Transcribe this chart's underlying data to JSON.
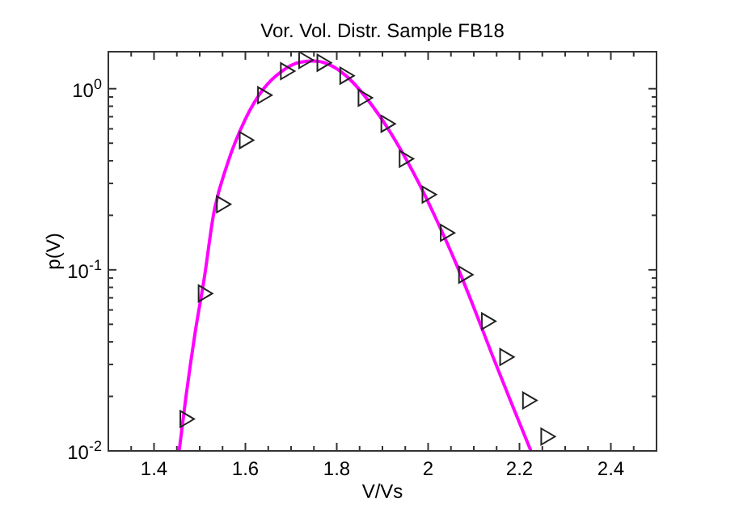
{
  "chart_data": {
    "type": "scatter",
    "title": "Vor. Vol. Distr. Sample FB18",
    "xlabel": "V/Vs",
    "ylabel": "p(V)",
    "log": "y",
    "grid": false,
    "xlim": [
      1.3,
      2.5
    ],
    "ylim": [
      0.01,
      1.6
    ],
    "xticks": [
      {
        "value": 1.35,
        "label": null
      },
      1.4,
      {
        "value": 1.45,
        "label": null
      },
      1.6,
      {
        "value": 1.5,
        "label": null
      },
      {
        "value": 1.55,
        "label": null
      },
      {
        "value": 1.65,
        "label": null
      },
      1.8,
      {
        "value": 1.7,
        "label": null
      },
      {
        "value": 1.75,
        "label": null
      },
      {
        "value": 1.85,
        "label": null
      },
      2,
      {
        "value": 1.9,
        "label": null
      },
      {
        "value": 1.95,
        "label": null
      },
      {
        "value": 2.05,
        "label": null
      },
      2.2,
      {
        "value": 2.1,
        "label": null
      },
      {
        "value": 2.15,
        "label": null
      },
      {
        "value": 2.25,
        "label": null
      },
      2.4,
      {
        "value": 2.3,
        "label": null
      },
      {
        "value": 2.35,
        "label": null
      },
      {
        "value": 2.45,
        "label": null
      }
    ],
    "yticks": [
      {
        "value": 0.01,
        "label": "10$^{-2}$"
      },
      {
        "value": 0.02,
        "label": null
      },
      {
        "value": 0.03,
        "label": null
      },
      {
        "value": 0.04,
        "label": null
      },
      {
        "value": 0.05,
        "label": null
      },
      {
        "value": 0.06,
        "label": null
      },
      {
        "value": 0.07,
        "label": null
      },
      {
        "value": 0.08,
        "label": null
      },
      {
        "value": 0.09,
        "label": null
      },
      {
        "value": 0.1,
        "label": "10$^{-1}$"
      },
      {
        "value": 0.2,
        "label": null
      },
      {
        "value": 0.3,
        "label": null
      },
      {
        "value": 0.4,
        "label": null
      },
      {
        "value": 0.5,
        "label": null
      },
      {
        "value": 0.6,
        "label": null
      },
      {
        "value": 0.7,
        "label": null
      },
      {
        "value": 0.8,
        "label": null
      },
      {
        "value": 0.9,
        "label": null
      },
      {
        "value": 1,
        "label": "10$^{0}$"
      }
    ],
    "series": [
      {
        "type": "line",
        "color": "#ff00ff",
        "marker": "none",
        "line_style": "solid",
        "x": [
          1.455,
          1.47,
          1.49,
          1.51,
          1.53,
          1.56,
          1.6,
          1.64,
          1.68,
          1.72,
          1.75,
          1.78,
          1.82,
          1.86,
          1.9,
          1.94,
          1.98,
          2.02,
          2.06,
          2.1,
          2.14,
          2.18,
          2.225
        ],
        "values": [
          0.01,
          0.02,
          0.045,
          0.09,
          0.2,
          0.38,
          0.68,
          1.0,
          1.25,
          1.4,
          1.42,
          1.37,
          1.18,
          0.92,
          0.67,
          0.46,
          0.3,
          0.185,
          0.11,
          0.062,
          0.034,
          0.019,
          0.01
        ]
      },
      {
        "color": "#222222",
        "marker": "triangle",
        "x": [
          1.47,
          1.51,
          1.55,
          1.6,
          1.64,
          1.69,
          1.73,
          1.77,
          1.82,
          1.86,
          1.91,
          1.95,
          2.0,
          2.04,
          2.08,
          2.13,
          2.17,
          2.22,
          2.26
        ],
        "values": [
          0.015,
          0.074,
          0.23,
          0.52,
          0.92,
          1.25,
          1.44,
          1.39,
          1.18,
          0.89,
          0.64,
          0.41,
          0.26,
          0.16,
          0.094,
          0.052,
          0.033,
          0.019,
          0.012
        ]
      }
    ]
  }
}
